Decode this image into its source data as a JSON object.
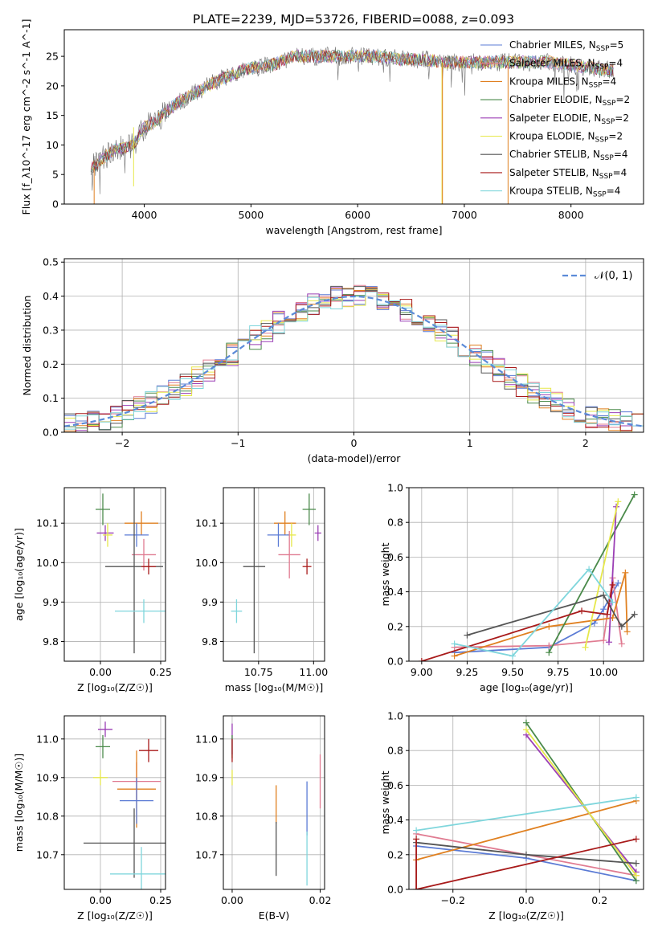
{
  "figure": {
    "title": "PLATE=2239, MJD=53726, FIBERID=0088, z=0.093"
  },
  "colors": {
    "Chabrier MILES": "#5b7bd5",
    "Salpeter MILES": "#e07b91",
    "Kroupa MILES": "#e08020",
    "Chabrier ELODIE": "#4a8a4a",
    "Salpeter ELODIE": "#9b3fb5",
    "Kroupa ELODIE": "#e6e84a",
    "Chabrier STELIB": "#555555",
    "Salpeter STELIB": "#a81a1a",
    "Kroupa STELIB": "#7fd6dc"
  },
  "chart_data": [
    {
      "id": "spectrum",
      "type": "line",
      "xlabel": "wavelength [Angstrom, rest frame]",
      "ylabel": "Flux [f_λ10^-17 erg cm^-2 s^-1 A^-1]",
      "xlim": [
        3250,
        8680
      ],
      "ylim": [
        0,
        29.5
      ],
      "xticks": [
        4000,
        5000,
        6000,
        7000,
        8000
      ],
      "yticks": [
        0,
        5,
        10,
        15,
        20,
        25
      ],
      "grid": false,
      "legend_position": "right",
      "legend": [
        {
          "model": "Chabrier MILES",
          "n": "5"
        },
        {
          "model": "Salpeter MILES",
          "n": "4"
        },
        {
          "model": "Kroupa MILES",
          "n": "4"
        },
        {
          "model": "Chabrier ELODIE",
          "n": "2"
        },
        {
          "model": "Salpeter ELODIE",
          "n": "2"
        },
        {
          "model": "Kroupa ELODIE",
          "n": "2"
        },
        {
          "model": "Chabrier STELIB",
          "n": "4"
        },
        {
          "model": "Salpeter STELIB",
          "n": "4"
        },
        {
          "model": "Kroupa STELIB",
          "n": "4"
        }
      ],
      "continuum": {
        "x": [
          3500,
          3700,
          3900,
          4000,
          4100,
          4300,
          4500,
          4700,
          4900,
          5000,
          5200,
          5400,
          5600,
          5800,
          6000,
          6200,
          6400,
          6600,
          6800,
          7000,
          7200,
          7400,
          7600,
          7800,
          8000,
          8200,
          8400
        ],
        "y": [
          6,
          9,
          10,
          13,
          14,
          17,
          19,
          21,
          22.5,
          23,
          23.5,
          25,
          25,
          25,
          25,
          25,
          24.5,
          24.5,
          24,
          24,
          24,
          24,
          24,
          24,
          23.5,
          23,
          22.5
        ]
      }
    },
    {
      "id": "residuals",
      "type": "step",
      "xlabel": "(data-model)/error",
      "ylabel": "Normed distribution",
      "xlim": [
        -2.5,
        2.5
      ],
      "ylim": [
        0,
        0.51
      ],
      "xticks": [
        -2,
        -1,
        0,
        1,
        2
      ],
      "xtick_labels": [
        "−2",
        "−1",
        "0",
        "1",
        "2"
      ],
      "yticks": [
        0,
        0.1,
        0.2,
        0.3,
        0.4,
        0.5
      ],
      "ytick_labels": [
        "0.0",
        "0.1",
        "0.2",
        "0.3",
        "0.4",
        "0.5"
      ],
      "grid": true,
      "legend": {
        "label": "𝒩(0, 1)",
        "position": "top-right"
      },
      "bin_width": 0.1
    },
    {
      "id": "z-vs-age",
      "type": "errorbar",
      "xlabel": "Z [log₁₀(Z/Z☉)]",
      "ylabel": "age  [log₁₀(age/yr)]",
      "xlim": [
        -0.15,
        0.27
      ],
      "ylim": [
        9.75,
        10.19
      ],
      "xticks": [
        0.0,
        0.25
      ],
      "xtick_labels": [
        "0.00",
        "0.25"
      ],
      "yticks": [
        9.8,
        9.9,
        10.0,
        10.1
      ],
      "ytick_labels": [
        "9.8",
        "9.9",
        "10.0",
        "10.1"
      ],
      "grid": true,
      "points": [
        {
          "model": "Chabrier ELODIE",
          "x": 0.01,
          "y": 10.135,
          "xerr": 0.03,
          "yerr": 0.04
        },
        {
          "model": "Kroupa MILES",
          "x": 0.17,
          "y": 10.1,
          "xerr": 0.07,
          "yerr": 0.03
        },
        {
          "model": "Salpeter ELODIE",
          "x": 0.02,
          "y": 10.075,
          "xerr": 0.035,
          "yerr": 0.02
        },
        {
          "model": "Kroupa ELODIE",
          "x": 0.03,
          "y": 10.07,
          "xerr": 0.02,
          "yerr": 0.03
        },
        {
          "model": "Chabrier MILES",
          "x": 0.15,
          "y": 10.07,
          "xerr": 0.05,
          "yerr": 0.03
        },
        {
          "model": "Salpeter MILES",
          "x": 0.18,
          "y": 10.02,
          "xerr": 0.05,
          "yerr": 0.04
        },
        {
          "model": "Chabrier STELIB",
          "x": 0.14,
          "y": 9.99,
          "xerr": 0.12,
          "yerr": 0.22
        },
        {
          "model": "Salpeter STELIB",
          "x": 0.2,
          "y": 9.99,
          "xerr": 0.03,
          "yerr": 0.02
        },
        {
          "model": "Kroupa STELIB",
          "x": 0.18,
          "y": 9.877,
          "xerr": 0.12,
          "yerr": 0.03
        }
      ]
    },
    {
      "id": "mass-vs-age",
      "type": "errorbar",
      "xlabel": "mass [log₁₀(M/M☉)]",
      "ylabel": "",
      "xlim": [
        10.59,
        11.05
      ],
      "ylim": [
        9.75,
        10.19
      ],
      "xticks": [
        10.75,
        11.0
      ],
      "xtick_labels": [
        "10.75",
        "11.00"
      ],
      "yticks": [
        9.8,
        9.9,
        10.0,
        10.1
      ],
      "ytick_labels": [
        "9.8",
        "9.9",
        "10.0",
        "10.1"
      ],
      "grid": true,
      "points": [
        {
          "model": "Chabrier ELODIE",
          "x": 10.98,
          "y": 10.135,
          "xerr": 0.03,
          "yerr": 0.04
        },
        {
          "model": "Salpeter ELODIE",
          "x": 11.02,
          "y": 10.075,
          "xerr": 0.015,
          "yerr": 0.02
        },
        {
          "model": "Kroupa MILES",
          "x": 10.87,
          "y": 10.1,
          "xerr": 0.05,
          "yerr": 0.03
        },
        {
          "model": "Kroupa ELODIE",
          "x": 10.9,
          "y": 10.07,
          "xerr": 0.02,
          "yerr": 0.03
        },
        {
          "model": "Chabrier MILES",
          "x": 10.84,
          "y": 10.07,
          "xerr": 0.05,
          "yerr": 0.03
        },
        {
          "model": "Salpeter MILES",
          "x": 10.89,
          "y": 10.02,
          "xerr": 0.05,
          "yerr": 0.06
        },
        {
          "model": "Salpeter STELIB",
          "x": 10.97,
          "y": 9.99,
          "xerr": 0.02,
          "yerr": 0.02
        },
        {
          "model": "Chabrier STELIB",
          "x": 10.73,
          "y": 9.99,
          "xerr": 0.05,
          "yerr": 0.22
        },
        {
          "model": "Kroupa STELIB",
          "x": 10.65,
          "y": 9.877,
          "xerr": 0.025,
          "yerr": 0.03
        }
      ]
    },
    {
      "id": "age-weights",
      "type": "line",
      "xlabel": "age  [log₁₀(age/yr)]",
      "ylabel": "mass weight",
      "xlim": [
        8.93,
        10.22
      ],
      "ylim": [
        0,
        1.0
      ],
      "xticks": [
        9.0,
        9.25,
        9.5,
        9.75,
        10.0
      ],
      "xtick_labels": [
        "9.00",
        "9.25",
        "9.50",
        "9.75",
        "10.00"
      ],
      "yticks": [
        0,
        0.2,
        0.4,
        0.6,
        0.8,
        1.0
      ],
      "ytick_labels": [
        "0.0",
        "0.2",
        "0.4",
        "0.6",
        "0.8",
        "1.0"
      ],
      "grid": true,
      "series": [
        {
          "model": "Chabrier MILES",
          "x": [
            9.18,
            9.7,
            9.95,
            10.0,
            10.08
          ],
          "y": [
            0.05,
            0.08,
            0.22,
            0.3,
            0.45
          ]
        },
        {
          "model": "Salpeter MILES",
          "x": [
            9.18,
            9.7,
            10.0,
            10.05,
            10.1
          ],
          "y": [
            0.08,
            0.09,
            0.12,
            0.48,
            0.1
          ]
        },
        {
          "model": "Kroupa MILES",
          "x": [
            9.18,
            9.7,
            10.05,
            10.12,
            10.13
          ],
          "y": [
            0.03,
            0.2,
            0.25,
            0.51,
            0.17
          ]
        },
        {
          "model": "Chabrier ELODIE",
          "x": [
            9.7,
            10.17
          ],
          "y": [
            0.05,
            0.96
          ]
        },
        {
          "model": "Salpeter ELODIE",
          "x": [
            10.03,
            10.07
          ],
          "y": [
            0.11,
            0.89
          ]
        },
        {
          "model": "Kroupa ELODIE",
          "x": [
            9.9,
            10.08
          ],
          "y": [
            0.08,
            0.92
          ]
        },
        {
          "model": "Chabrier STELIB",
          "x": [
            9.25,
            10.0,
            10.1,
            10.17
          ],
          "y": [
            0.15,
            0.38,
            0.2,
            0.27
          ]
        },
        {
          "model": "Salpeter STELIB",
          "x": [
            9.0,
            9.88,
            10.02,
            10.05
          ],
          "y": [
            0.0,
            0.29,
            0.27,
            0.44
          ]
        },
        {
          "model": "Kroupa STELIB",
          "x": [
            9.18,
            9.5,
            9.92,
            10.05
          ],
          "y": [
            0.1,
            0.03,
            0.53,
            0.34
          ]
        }
      ]
    },
    {
      "id": "z-vs-mass",
      "type": "errorbar",
      "xlabel": "Z [log₁₀(Z/Z☉)]",
      "ylabel": "mass [log₁₀(M/M☉)]",
      "xlim": [
        -0.15,
        0.27
      ],
      "ylim": [
        10.61,
        11.06
      ],
      "xticks": [
        0.0,
        0.25
      ],
      "xtick_labels": [
        "0.00",
        "0.25"
      ],
      "yticks": [
        10.7,
        10.8,
        10.9,
        11.0
      ],
      "ytick_labels": [
        "10.7",
        "10.8",
        "10.9",
        "11.0"
      ],
      "grid": true,
      "points": [
        {
          "model": "Salpeter ELODIE",
          "x": 0.02,
          "y": 11.025,
          "xerr": 0.03,
          "yerr": 0.02
        },
        {
          "model": "Chabrier ELODIE",
          "x": 0.01,
          "y": 10.98,
          "xerr": 0.03,
          "yerr": 0.03
        },
        {
          "model": "Salpeter STELIB",
          "x": 0.2,
          "y": 10.97,
          "xerr": 0.04,
          "yerr": 0.03
        },
        {
          "model": "Kroupa ELODIE",
          "x": 0.0,
          "y": 10.9,
          "xerr": 0.03,
          "yerr": 0.02
        },
        {
          "model": "Salpeter MILES",
          "x": 0.15,
          "y": 10.89,
          "xerr": 0.1,
          "yerr": 0.05
        },
        {
          "model": "Kroupa MILES",
          "x": 0.15,
          "y": 10.87,
          "xerr": 0.08,
          "yerr": 0.1
        },
        {
          "model": "Chabrier MILES",
          "x": 0.15,
          "y": 10.84,
          "xerr": 0.07,
          "yerr": 0.06
        },
        {
          "model": "Chabrier STELIB",
          "x": 0.14,
          "y": 10.73,
          "xerr": 0.21,
          "yerr": 0.09
        },
        {
          "model": "Kroupa STELIB",
          "x": 0.17,
          "y": 10.65,
          "xerr": 0.13,
          "yerr": 0.07
        }
      ]
    },
    {
      "id": "ebv-vs-mass",
      "type": "errorbar",
      "xlabel": "E(B-V)",
      "ylabel": "",
      "xlim": [
        -0.002,
        0.021
      ],
      "ylim": [
        10.61,
        11.06
      ],
      "xticks": [
        0.0,
        0.02
      ],
      "xtick_labels": [
        "0.00",
        "0.02"
      ],
      "yticks": [
        10.7,
        10.8,
        10.9,
        11.0
      ],
      "ytick_labels": [
        "10.7",
        "10.8",
        "10.9",
        "11.0"
      ],
      "grid": true,
      "points": [
        {
          "model": "Salpeter ELODIE",
          "x": 0.0,
          "y": 11.0,
          "xerr": 0,
          "yerr": 0.04
        },
        {
          "model": "Chabrier ELODIE",
          "x": 0.0,
          "y": 10.98,
          "xerr": 0,
          "yerr": 0.03
        },
        {
          "model": "Salpeter STELIB",
          "x": 0.0,
          "y": 10.97,
          "xerr": 0,
          "yerr": 0.03
        },
        {
          "model": "Kroupa ELODIE",
          "x": 0.0,
          "y": 10.9,
          "xerr": 0,
          "yerr": 0.02
        },
        {
          "model": "Salpeter MILES",
          "x": 0.02,
          "y": 10.89,
          "xerr": 0,
          "yerr": 0.07
        },
        {
          "model": "Kroupa MILES",
          "x": 0.01,
          "y": 10.83,
          "xerr": 0,
          "yerr": 0.05
        },
        {
          "model": "Chabrier MILES",
          "x": 0.017,
          "y": 10.82,
          "xerr": 0,
          "yerr": 0.07
        },
        {
          "model": "Chabrier STELIB",
          "x": 0.01,
          "y": 10.715,
          "xerr": 0,
          "yerr": 0.07
        },
        {
          "model": "Kroupa STELIB",
          "x": 0.017,
          "y": 10.69,
          "xerr": 0,
          "yerr": 0.07
        }
      ]
    },
    {
      "id": "z-weights",
      "type": "line",
      "xlabel": "Z [log₁₀(Z/Z☉)]",
      "ylabel": "mass weight",
      "xlim": [
        -0.32,
        0.32
      ],
      "ylim": [
        0,
        1.0
      ],
      "xticks": [
        -0.2,
        0.0,
        0.2
      ],
      "xtick_labels": [
        "−0.2",
        "0.0",
        "0.2"
      ],
      "yticks": [
        0,
        0.2,
        0.4,
        0.6,
        0.8,
        1.0
      ],
      "ytick_labels": [
        "0.0",
        "0.2",
        "0.4",
        "0.6",
        "0.8",
        "1.0"
      ],
      "grid": true,
      "series": [
        {
          "model": "Chabrier MILES",
          "x": [
            -0.3,
            0.0,
            0.3
          ],
          "y": [
            0.25,
            0.18,
            0.05
          ]
        },
        {
          "model": "Salpeter MILES",
          "x": [
            -0.3,
            0.3
          ],
          "y": [
            0.32,
            0.08
          ]
        },
        {
          "model": "Kroupa MILES",
          "x": [
            -0.3,
            0.3
          ],
          "y": [
            0.17,
            0.51
          ]
        },
        {
          "model": "Chabrier ELODIE",
          "x": [
            0.0,
            0.3
          ],
          "y": [
            0.96,
            0.05
          ]
        },
        {
          "model": "Salpeter ELODIE",
          "x": [
            0.0,
            0.3
          ],
          "y": [
            0.89,
            0.1
          ]
        },
        {
          "model": "Kroupa ELODIE",
          "x": [
            0.0,
            0.3
          ],
          "y": [
            0.92,
            0.08
          ]
        },
        {
          "model": "Chabrier STELIB",
          "x": [
            -0.3,
            0.0,
            0.3
          ],
          "y": [
            0.27,
            0.2,
            0.15
          ]
        },
        {
          "model": "Salpeter STELIB",
          "x": [
            -0.3,
            -0.3,
            0.3
          ],
          "y": [
            0.29,
            0.0,
            0.29
          ]
        },
        {
          "model": "Kroupa STELIB",
          "x": [
            -0.3,
            0.3
          ],
          "y": [
            0.34,
            0.53
          ]
        }
      ]
    }
  ]
}
